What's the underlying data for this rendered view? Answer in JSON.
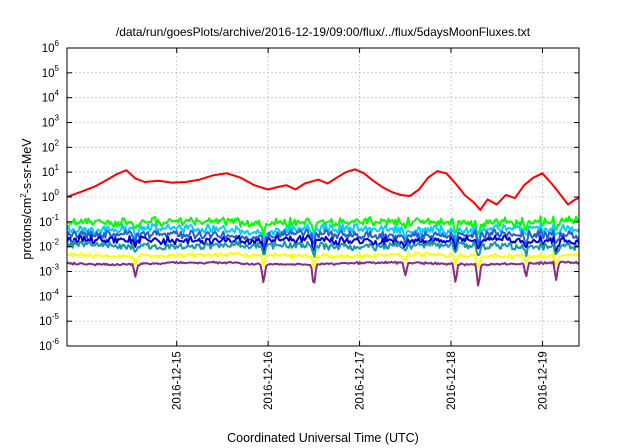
{
  "chart_data": {
    "type": "line",
    "title": "/data/run/goesPlots/archive/2016-12-19/09:00/flux/../flux/5daysMoonFluxes.txt",
    "xlabel": "Coordinated Universal Time (UTC)",
    "ylabel_parts": [
      "protons/cm",
      "2",
      "-s-sr-MeV"
    ],
    "yscale": "log",
    "ylim_exp": [
      -6,
      6
    ],
    "y_ticks": [
      {
        "base": "10",
        "exp": "6"
      },
      {
        "base": "10",
        "exp": "5"
      },
      {
        "base": "10",
        "exp": "4"
      },
      {
        "base": "10",
        "exp": "3"
      },
      {
        "base": "10",
        "exp": "2"
      },
      {
        "base": "10",
        "exp": "1"
      },
      {
        "base": "10",
        "exp": "0"
      },
      {
        "base": "10",
        "exp": "-1"
      },
      {
        "base": "10",
        "exp": "-2"
      },
      {
        "base": "10",
        "exp": "-3"
      },
      {
        "base": "10",
        "exp": "-4"
      },
      {
        "base": "10",
        "exp": "-5"
      },
      {
        "base": "10",
        "exp": "-6"
      }
    ],
    "xlim_days": [
      -1.2,
      4.4
    ],
    "x_ticks": [
      {
        "label": "2016-12-15",
        "day": 0
      },
      {
        "label": "2016-12-16",
        "day": 1
      },
      {
        "label": "2016-12-17",
        "day": 2
      },
      {
        "label": "2016-12-18",
        "day": 3
      },
      {
        "label": "2016-12-19",
        "day": 4
      }
    ],
    "grid": true,
    "series": [
      {
        "color": "#ff0000",
        "points": [
          [
            -1.2,
            1.0
          ],
          [
            -1.05,
            1.6
          ],
          [
            -0.9,
            2.6
          ],
          [
            -0.78,
            4.5
          ],
          [
            -0.65,
            8.5
          ],
          [
            -0.55,
            12.0
          ],
          [
            -0.45,
            5.5
          ],
          [
            -0.35,
            4.0
          ],
          [
            -0.2,
            4.5
          ],
          [
            -0.05,
            3.8
          ],
          [
            0.1,
            4.0
          ],
          [
            0.25,
            5.0
          ],
          [
            0.4,
            7.5
          ],
          [
            0.55,
            9.0
          ],
          [
            0.7,
            6.0
          ],
          [
            0.85,
            3.0
          ],
          [
            1.0,
            2.0
          ],
          [
            1.1,
            2.5
          ],
          [
            1.2,
            3.0
          ],
          [
            1.3,
            2.0
          ],
          [
            1.4,
            3.5
          ],
          [
            1.55,
            5.0
          ],
          [
            1.65,
            3.5
          ],
          [
            1.75,
            6.0
          ],
          [
            1.85,
            10.0
          ],
          [
            1.95,
            13.0
          ],
          [
            2.05,
            9.0
          ],
          [
            2.15,
            4.5
          ],
          [
            2.25,
            2.5
          ],
          [
            2.35,
            1.6
          ],
          [
            2.45,
            1.2
          ],
          [
            2.55,
            1.1
          ],
          [
            2.65,
            2.0
          ],
          [
            2.75,
            6.0
          ],
          [
            2.85,
            11.0
          ],
          [
            2.95,
            9.0
          ],
          [
            3.05,
            3.5
          ],
          [
            3.15,
            1.2
          ],
          [
            3.25,
            0.6
          ],
          [
            3.32,
            0.3
          ],
          [
            3.4,
            0.8
          ],
          [
            3.5,
            0.5
          ],
          [
            3.6,
            1.2
          ],
          [
            3.7,
            0.9
          ],
          [
            3.8,
            3.0
          ],
          [
            3.9,
            6.0
          ],
          [
            4.0,
            9.0
          ],
          [
            4.1,
            3.5
          ],
          [
            4.2,
            1.2
          ],
          [
            4.28,
            0.5
          ],
          [
            4.36,
            0.8
          ],
          [
            4.4,
            0.9
          ]
        ]
      },
      {
        "color": "#00ff00",
        "base": 0.1,
        "amp": 0.24,
        "seed": 1
      },
      {
        "color": "#00cfff",
        "base": 0.05,
        "amp": 0.24,
        "seed": 2
      },
      {
        "color": "#2a5fd0",
        "base": 0.03,
        "amp": 0.24,
        "seed": 3
      },
      {
        "color": "#0000d8",
        "base": 0.018,
        "amp": 0.22,
        "seed": 4
      },
      {
        "color": "#139a9a",
        "base": 0.011,
        "amp": 0.2,
        "seed": 5
      },
      {
        "color": "#ffff00",
        "base": 0.0045,
        "amp": 0.12,
        "seed": 6
      },
      {
        "color": "#8b2d7a",
        "base": 0.0021,
        "amp": 0.06,
        "seed": 7
      }
    ]
  }
}
